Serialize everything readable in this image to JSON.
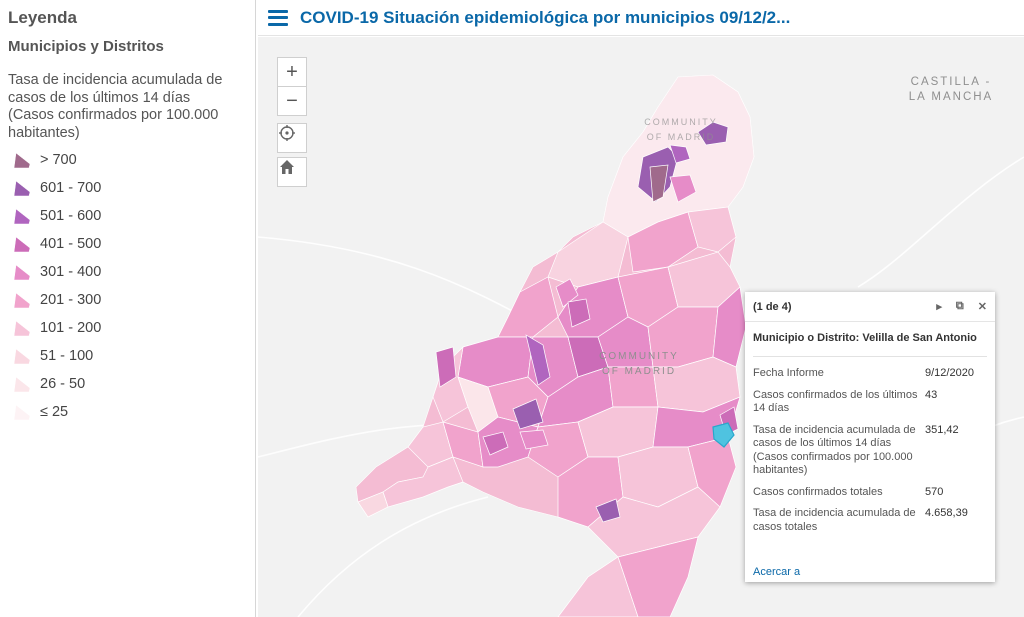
{
  "legend": {
    "title": "Leyenda",
    "layer_title": "Municipios y Distritos",
    "field_description": "Tasa de incidencia acumulada de casos de los últimos 14 días (Casos confirmados por 100.000 habitantes)",
    "classes": [
      {
        "label": "> 700",
        "color": "#a06a8c"
      },
      {
        "label": "601 - 700",
        "color": "#9a5fb0"
      },
      {
        "label": "501 - 600",
        "color": "#b065bf"
      },
      {
        "label": "401 - 500",
        "color": "#cc6cb8"
      },
      {
        "label": "301 - 400",
        "color": "#e68cc8"
      },
      {
        "label": "201 - 300",
        "color": "#f1a3cc"
      },
      {
        "label": "101 - 200",
        "color": "#f6c4d9"
      },
      {
        "label": "51 - 100",
        "color": "#f9d8e1"
      },
      {
        "label": "26 - 50",
        "color": "#fbe6ea"
      },
      {
        "label": "≤ 25",
        "color": "#fdf3f5"
      }
    ]
  },
  "header": {
    "title": "COVID-19 Situación epidemiológica por municipios 09/12/2..."
  },
  "map": {
    "labels": {
      "castilla_line1": "CASTILLA -",
      "castilla_line2": "LA MANCHA",
      "comm_north": "COMMUNITY OF MADRID",
      "comm_center_line1": "COMMUNITY",
      "comm_center_line2": "OF MADRID"
    },
    "controls": {
      "zoom_in": "+",
      "zoom_out": "−"
    },
    "selected_color": "#4fc3e0"
  },
  "popup": {
    "pager": "(1 de 4)",
    "title": "Municipio o Distrito: Velilla de San Antonio",
    "rows": [
      {
        "key": "Fecha Informe",
        "value": "9/12/2020"
      },
      {
        "key": "Casos confirmados de los últimos 14 días",
        "value": "43"
      },
      {
        "key": "Tasa de incidencia acumulada de casos de los últimos 14 días (Casos confirmados por 100.000 habitantes)",
        "value": "351,42"
      },
      {
        "key": "Casos confirmados totales",
        "value": "570"
      },
      {
        "key": "Tasa de incidencia acumulada de casos totales",
        "value": "4.658,39"
      }
    ],
    "zoom_link": "Acercar a"
  }
}
